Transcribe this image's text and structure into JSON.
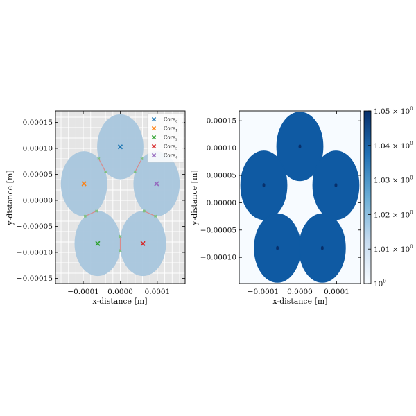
{
  "chart_data": [
    {
      "type": "scatter",
      "panel": "left",
      "xlabel": "x-distance [m]",
      "ylabel": "y-distance [m]",
      "xlim": [
        -0.000175,
        0.000175
      ],
      "ylim": [
        -0.00016,
        0.000172
      ],
      "grid": true,
      "legend_position": "top-right",
      "xticks": [
        -0.0001,
        0.0,
        0.0001
      ],
      "xtick_labels": [
        "−0.0001",
        "0.0000",
        "0.0001"
      ],
      "yticks": [
        -0.00015,
        -0.0001,
        -5e-05,
        0.0,
        5e-05,
        0.0001,
        0.00015
      ],
      "ytick_labels": [
        "−0.00015",
        "−0.00010",
        "−0.00005",
        "0.00000",
        "0.00005",
        "0.00010",
        "0.00015"
      ],
      "core_radius": 6.25e-05,
      "series": [
        {
          "name": "Core",
          "sub": "0",
          "color": "#1f77b4",
          "x": 0.0,
          "y": 0.000103
        },
        {
          "name": "Core",
          "sub": "1",
          "color": "#ff7f0e",
          "x": -9.8e-05,
          "y": 3.2e-05
        },
        {
          "name": "Core",
          "sub": "2",
          "color": "#2ca02c",
          "x": -6.1e-05,
          "y": -8.3e-05
        },
        {
          "name": "Core",
          "sub": "3",
          "color": "#d62728",
          "x": 6.1e-05,
          "y": -8.3e-05
        },
        {
          "name": "Core",
          "sub": "4",
          "color": "#9467bd",
          "x": 9.8e-05,
          "y": 3.2e-05
        }
      ],
      "colors": {
        "circle": "#a8c6dd",
        "background": "#e5e5e5",
        "boundary": "#d98a8a",
        "junction": "#7fbf7f"
      }
    },
    {
      "type": "heatmap",
      "panel": "right",
      "xlabel": "x-distance [m]",
      "ylabel": "y-distance [m]",
      "xlim": [
        -0.000165,
        0.000165
      ],
      "ylim": [
        -0.000148,
        0.000168
      ],
      "xticks": [
        -0.0001,
        0.0,
        0.0001
      ],
      "xtick_labels": [
        "−0.0001",
        "0.0000",
        "0.0001"
      ],
      "yticks": [
        -0.0001,
        -5e-05,
        0.0,
        5e-05,
        0.0001,
        0.00015
      ],
      "ytick_labels": [
        "−0.00010",
        "−0.00005",
        "0.00000",
        "0.00005",
        "0.00010",
        "0.00015"
      ],
      "core_radius": 6.25e-05,
      "value_inside": 1.04,
      "value_outside": 1.0,
      "colorbar": {
        "min": 1.0,
        "max": 1.05,
        "ticks": [
          1.0,
          1.01,
          1.02,
          1.03,
          1.04,
          1.05
        ],
        "tick_base": [
          "10",
          "1.01 × 10",
          "1.02 × 10",
          "1.03 × 10",
          "1.04 × 10",
          "1.05 × 10"
        ],
        "tick_exp": [
          "0",
          "0",
          "0",
          "0",
          "0",
          "0"
        ]
      },
      "colors": {
        "low": "#f7fbff",
        "high": "#08306b",
        "fill": "#0f5aa3",
        "marker": "#08306b"
      }
    }
  ]
}
